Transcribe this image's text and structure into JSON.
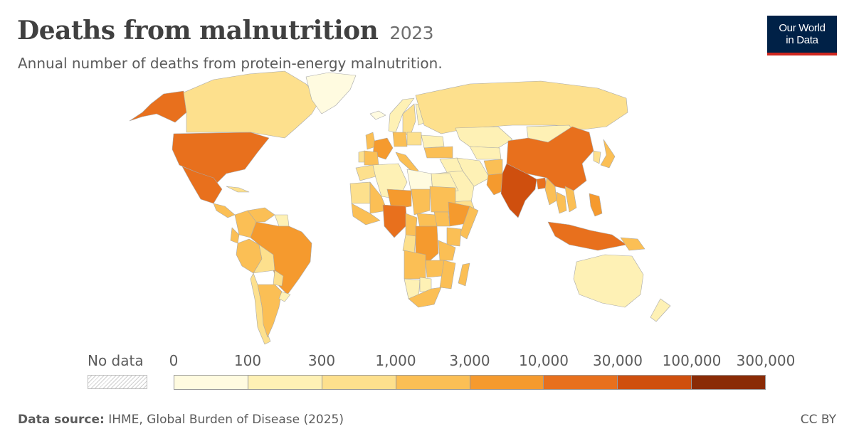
{
  "header": {
    "title": "Deaths from malnutrition",
    "year": "2023",
    "subtitle": "Annual number of deaths from protein-energy malnutrition."
  },
  "logo": {
    "line1": "Our World",
    "line2": "in Data"
  },
  "legend": {
    "no_data_label": "No data",
    "ticks": [
      "0",
      "100",
      "300",
      "1,000",
      "3,000",
      "10,000",
      "30,000",
      "100,000",
      "300,000"
    ],
    "bin_colors": [
      "#fffbe0",
      "#fef1b5",
      "#fde08d",
      "#fbbf55",
      "#f59a2e",
      "#e8701d",
      "#cf4f0e",
      "#8a2b05"
    ]
  },
  "footer": {
    "source_label": "Data source:",
    "source_text": "IHME, Global Burden of Disease (2025)",
    "license": "CC BY"
  },
  "chart_data": {
    "type": "choropleth",
    "year": "2023",
    "bins": [
      {
        "range": "0–100",
        "color": "#fffbe0"
      },
      {
        "range": "100–300",
        "color": "#fef1b5"
      },
      {
        "range": "300–1,000",
        "color": "#fde08d"
      },
      {
        "range": "1,000–3,000",
        "color": "#fbbf55"
      },
      {
        "range": "3,000–10,000",
        "color": "#f59a2e"
      },
      {
        "range": "10,000–30,000",
        "color": "#e8701d"
      },
      {
        "range": "30,000–100,000",
        "color": "#cf4f0e"
      },
      {
        "range": "100,000–300,000",
        "color": "#8a2b05"
      }
    ],
    "regions": [
      {
        "name": "Alaska (USA)",
        "bin": "10,000–30,000"
      },
      {
        "name": "Canada",
        "bin": "300–1,000"
      },
      {
        "name": "Greenland",
        "bin": "0–100"
      },
      {
        "name": "United States",
        "bin": "10,000–30,000"
      },
      {
        "name": "Mexico",
        "bin": "10,000–30,000"
      },
      {
        "name": "Central America",
        "bin": "1,000–3,000"
      },
      {
        "name": "Cuba",
        "bin": "300–1,000"
      },
      {
        "name": "Colombia",
        "bin": "1,000–3,000"
      },
      {
        "name": "Venezuela",
        "bin": "1,000–3,000"
      },
      {
        "name": "Guianas",
        "bin": "100–300"
      },
      {
        "name": "Peru",
        "bin": "1,000–3,000"
      },
      {
        "name": "Ecuador",
        "bin": "1,000–3,000"
      },
      {
        "name": "Brazil",
        "bin": "3,000–10,000"
      },
      {
        "name": "Bolivia",
        "bin": "300–1,000"
      },
      {
        "name": "Paraguay",
        "bin": "300–1,000"
      },
      {
        "name": "Chile",
        "bin": "300–1,000"
      },
      {
        "name": "Argentina",
        "bin": "1,000–3,000"
      },
      {
        "name": "Uruguay",
        "bin": "100–300"
      },
      {
        "name": "Iceland",
        "bin": "0–100"
      },
      {
        "name": "United Kingdom",
        "bin": "1,000–3,000"
      },
      {
        "name": "Norway",
        "bin": "100–300"
      },
      {
        "name": "Sweden",
        "bin": "300–1,000"
      },
      {
        "name": "Finland",
        "bin": "100–300"
      },
      {
        "name": "France",
        "bin": "3,000–10,000"
      },
      {
        "name": "Spain",
        "bin": "1,000–3,000"
      },
      {
        "name": "Portugal",
        "bin": "300–1,000"
      },
      {
        "name": "Germany",
        "bin": "1,000–3,000"
      },
      {
        "name": "Italy",
        "bin": "1,000–3,000"
      },
      {
        "name": "Poland",
        "bin": "300–1,000"
      },
      {
        "name": "Ukraine",
        "bin": "100–300"
      },
      {
        "name": "Russia",
        "bin": "300–1,000"
      },
      {
        "name": "Turkey",
        "bin": "1,000–3,000"
      },
      {
        "name": "Kazakhstan",
        "bin": "100–300"
      },
      {
        "name": "Central Asia",
        "bin": "100–300"
      },
      {
        "name": "Mongolia",
        "bin": "100–300"
      },
      {
        "name": "Iran",
        "bin": "100–300"
      },
      {
        "name": "Iraq & Syria",
        "bin": "100–300"
      },
      {
        "name": "Saudi Arabia",
        "bin": "100–300"
      },
      {
        "name": "Yemen",
        "bin": "300–1,000"
      },
      {
        "name": "Afghanistan",
        "bin": "1,000–3,000"
      },
      {
        "name": "Pakistan",
        "bin": "3,000–10,000"
      },
      {
        "name": "India",
        "bin": "30,000–100,000"
      },
      {
        "name": "Bangladesh",
        "bin": "10,000–30,000"
      },
      {
        "name": "China",
        "bin": "10,000–30,000"
      },
      {
        "name": "Myanmar",
        "bin": "1,000–3,000"
      },
      {
        "name": "Thailand",
        "bin": "1,000–3,000"
      },
      {
        "name": "Vietnam",
        "bin": "1,000–3,000"
      },
      {
        "name": "Korea",
        "bin": "300–1,000"
      },
      {
        "name": "Japan",
        "bin": "1,000–3,000"
      },
      {
        "name": "Philippines",
        "bin": "3,000–10,000"
      },
      {
        "name": "Indonesia",
        "bin": "10,000–30,000"
      },
      {
        "name": "Papua New Guinea",
        "bin": "1,000–3,000"
      },
      {
        "name": "Australia",
        "bin": "100–300"
      },
      {
        "name": "New Zealand",
        "bin": "100–300"
      },
      {
        "name": "Morocco",
        "bin": "300–1,000"
      },
      {
        "name": "Algeria",
        "bin": "100–300"
      },
      {
        "name": "Libya",
        "bin": "0–100"
      },
      {
        "name": "Egypt",
        "bin": "100–300"
      },
      {
        "name": "Mauritania",
        "bin": "300–1,000"
      },
      {
        "name": "Mali",
        "bin": "1,000–3,000"
      },
      {
        "name": "Niger",
        "bin": "3,000–10,000"
      },
      {
        "name": "Chad",
        "bin": "1,000–3,000"
      },
      {
        "name": "Sudan",
        "bin": "1,000–3,000"
      },
      {
        "name": "West Africa coast",
        "bin": "1,000–3,000"
      },
      {
        "name": "Nigeria",
        "bin": "10,000–30,000"
      },
      {
        "name": "Cameroon",
        "bin": "1,000–3,000"
      },
      {
        "name": "Central African Republic",
        "bin": "1,000–3,000"
      },
      {
        "name": "South Sudan",
        "bin": "1,000–3,000"
      },
      {
        "name": "Ethiopia",
        "bin": "3,000–10,000"
      },
      {
        "name": "Somalia",
        "bin": "1,000–3,000"
      },
      {
        "name": "Kenya",
        "bin": "1,000–3,000"
      },
      {
        "name": "DR Congo",
        "bin": "3,000–10,000"
      },
      {
        "name": "Congo & Gabon",
        "bin": "300–1,000"
      },
      {
        "name": "Tanzania",
        "bin": "1,000–3,000"
      },
      {
        "name": "Angola",
        "bin": "1,000–3,000"
      },
      {
        "name": "Zambia",
        "bin": "1,000–3,000"
      },
      {
        "name": "Mozambique",
        "bin": "1,000–3,000"
      },
      {
        "name": "Madagascar",
        "bin": "1,000–3,000"
      },
      {
        "name": "Namibia",
        "bin": "100–300"
      },
      {
        "name": "Botswana",
        "bin": "100–300"
      },
      {
        "name": "South Africa",
        "bin": "1,000–3,000"
      }
    ]
  }
}
